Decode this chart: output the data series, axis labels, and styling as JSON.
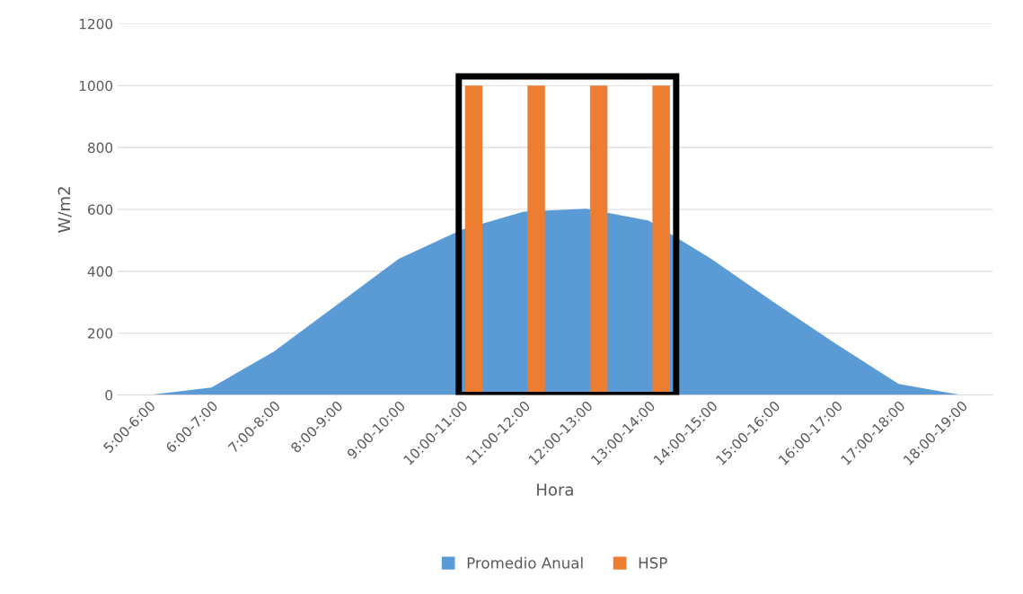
{
  "chart_data": {
    "type": "area",
    "xlabel": "Hora",
    "ylabel": "W/m2",
    "categories": [
      "5:00-6:00",
      "6:00-7:00",
      "7:00-8:00",
      "8:00-9:00",
      "9:00-10:00",
      "10:00-11:00",
      "11:00-12:00",
      "12:00-13:00",
      "13:00-14:00",
      "14:00-15:00",
      "15:00-16:00",
      "16:00-17:00",
      "17:00-18:00",
      "18:00-19:00"
    ],
    "series": [
      {
        "name": "Promedio Anual",
        "color": "#5b9bd5",
        "values": [
          0,
          24,
          140,
          290,
          440,
          534,
          593,
          602,
          564,
          440,
          300,
          165,
          36,
          0
        ]
      },
      {
        "name": "HSP",
        "type": "bar",
        "color": "#ed7d31",
        "values": [
          null,
          null,
          null,
          null,
          null,
          1000,
          1000,
          1000,
          1000,
          null,
          null,
          null,
          null,
          null
        ]
      }
    ],
    "ylim": [
      0,
      1200
    ],
    "yticks": [
      0,
      200,
      400,
      600,
      800,
      1000,
      1200
    ],
    "grid": "y",
    "legend": "bottom"
  }
}
